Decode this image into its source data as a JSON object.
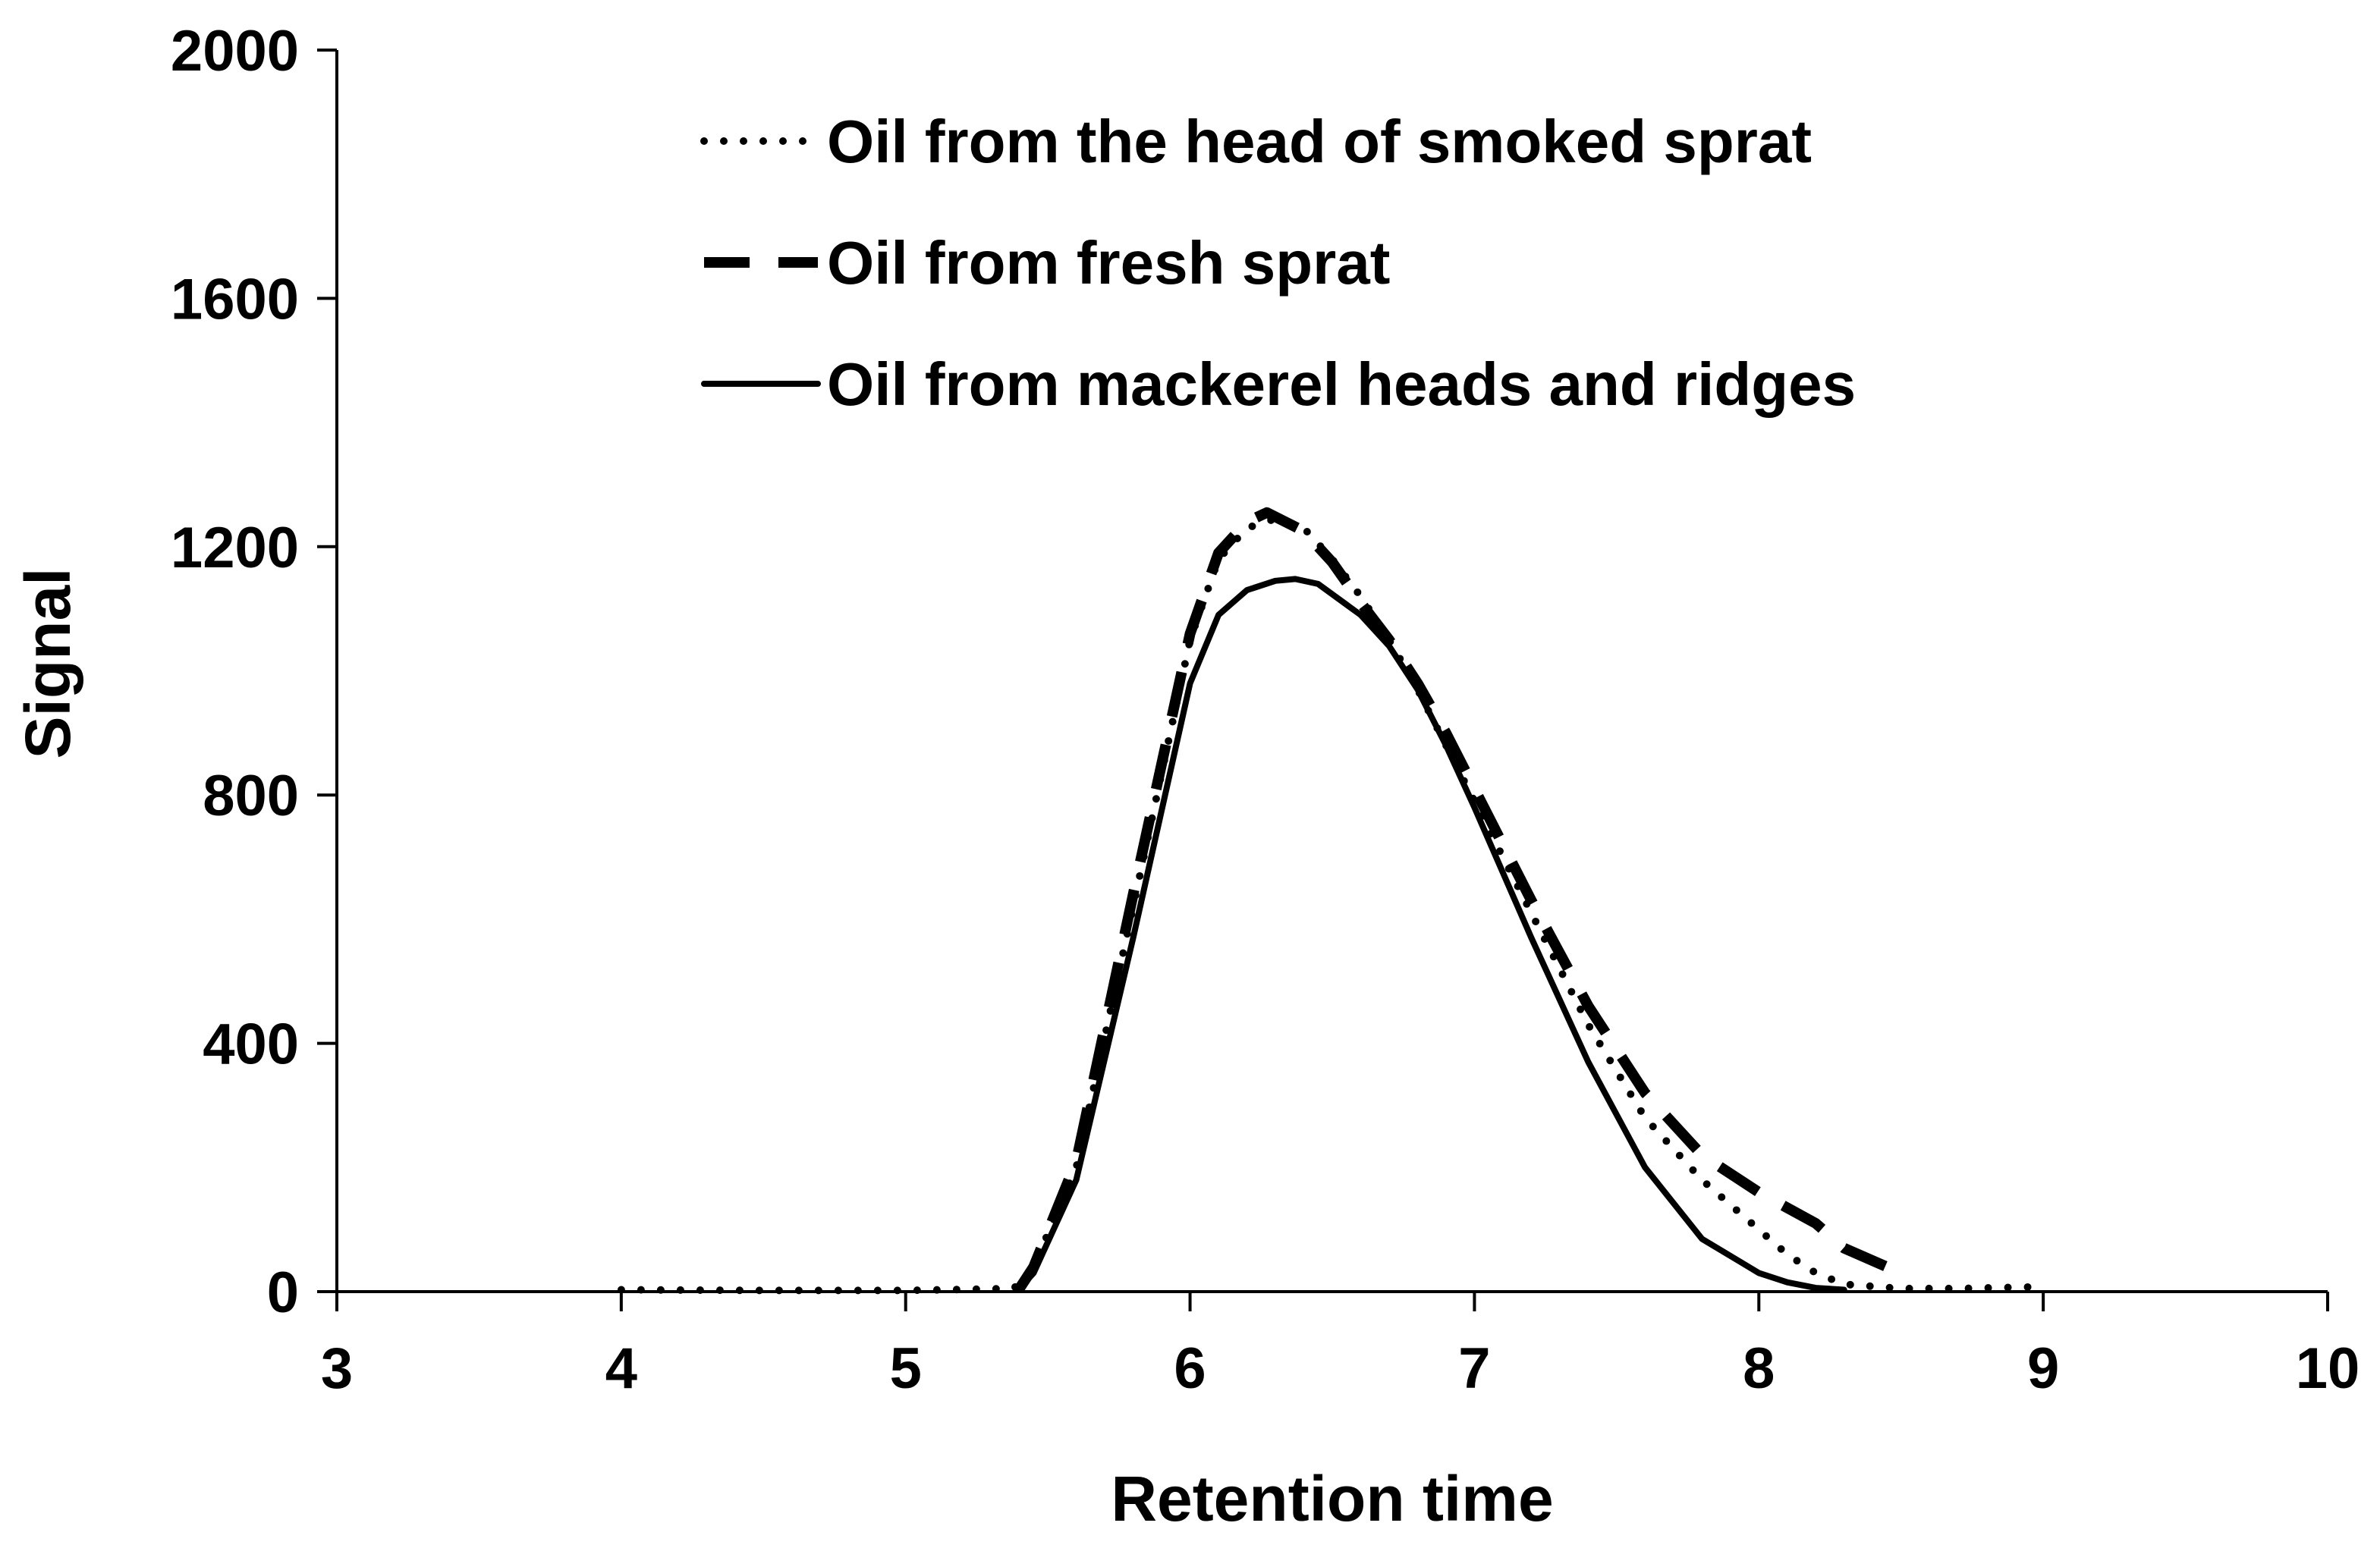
{
  "chart_data": {
    "type": "line",
    "title": "",
    "xlabel": "Retention time",
    "ylabel": "Signal",
    "xlim": [
      3,
      10
    ],
    "ylim": [
      0,
      2000
    ],
    "xticks": [
      3,
      4,
      5,
      6,
      7,
      8,
      9,
      10
    ],
    "yticks": [
      0,
      400,
      800,
      1200,
      1600,
      2000
    ],
    "grid": false,
    "legend": "top-center",
    "series": [
      {
        "name": "Oil from the head of smoked sprat",
        "style": "dotted",
        "color": "#000000",
        "x": [
          4.0,
          4.5,
          5.0,
          5.38,
          5.45,
          5.6,
          5.8,
          6.0,
          6.1,
          6.2,
          6.3,
          6.4,
          6.5,
          6.6,
          6.7,
          6.8,
          6.9,
          7.0,
          7.2,
          7.4,
          7.6,
          7.8,
          8.0,
          8.1,
          8.2,
          8.3,
          8.5,
          8.7,
          9.0
        ],
        "y": [
          3,
          2,
          2,
          5,
          40,
          200,
          620,
          1050,
          1180,
          1230,
          1245,
          1230,
          1180,
          1120,
          1050,
          970,
          880,
          790,
          610,
          430,
          280,
          180,
          100,
          60,
          30,
          12,
          5,
          5,
          8
        ]
      },
      {
        "name": "Oil from fresh sprat",
        "style": "dashed",
        "color": "#000000",
        "x": [
          5.4,
          5.45,
          5.6,
          5.8,
          6.0,
          6.1,
          6.2,
          6.27,
          6.4,
          6.5,
          6.6,
          6.7,
          6.8,
          6.9,
          7.0,
          7.2,
          7.4,
          7.6,
          7.8,
          8.0,
          8.2,
          8.3,
          8.45
        ],
        "y": [
          5,
          40,
          210,
          640,
          1060,
          1190,
          1240,
          1255,
          1225,
          1175,
          1110,
          1050,
          980,
          900,
          810,
          630,
          460,
          320,
          220,
          160,
          110,
          70,
          40
        ]
      },
      {
        "name": "Oil from mackerel heads and ridges",
        "style": "solid",
        "color": "#000000",
        "x": [
          5.4,
          5.45,
          5.6,
          5.8,
          6.0,
          6.1,
          6.2,
          6.3,
          6.37,
          6.45,
          6.6,
          6.7,
          6.8,
          6.9,
          7.0,
          7.2,
          7.4,
          7.6,
          7.8,
          8.0,
          8.1,
          8.2,
          8.3
        ],
        "y": [
          5,
          30,
          180,
          570,
          980,
          1090,
          1130,
          1145,
          1148,
          1140,
          1090,
          1040,
          970,
          880,
          780,
          570,
          370,
          200,
          85,
          30,
          15,
          6,
          3
        ]
      }
    ]
  }
}
